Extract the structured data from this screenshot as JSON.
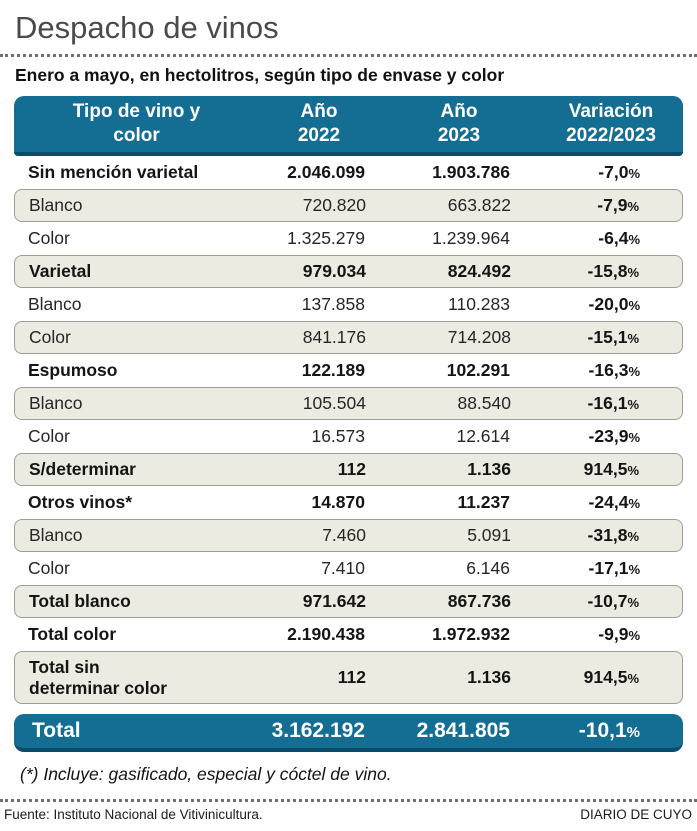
{
  "title": "Despacho de vinos",
  "subtitle": "Enero a mayo, en hectolitros, según tipo de envase y color",
  "colors": {
    "header_teal": "#146d92",
    "header_teal_dark_edge": "#0b4c6b",
    "shaded_row": "#ebebe2",
    "shaded_row_border": "#9e9e96",
    "title_gray": "#4a4a4a"
  },
  "chart_data": {
    "type": "table",
    "title": "Despacho de vinos",
    "subtitle": "Enero a mayo, en hectolitros, según tipo de envase y color",
    "unit": "hectolitros",
    "columns": [
      "Tipo de vino y color",
      "Año 2022",
      "Año 2023",
      "Variación 2022/2023"
    ],
    "header": {
      "col1": "Tipo de vino y\ncolor",
      "col2": "Año\n2022",
      "col3": "Año\n2023",
      "col4": "Variación\n2022/2023"
    },
    "rows": [
      {
        "label": "Sin mención varietal",
        "y2022": "2.046.099",
        "y2023": "1.903.786",
        "variation": "-7,0%",
        "bold": true,
        "shaded": false
      },
      {
        "label": "Blanco",
        "y2022": "720.820",
        "y2023": "663.822",
        "variation": "-7,9%",
        "bold": false,
        "shaded": true
      },
      {
        "label": "Color",
        "y2022": "1.325.279",
        "y2023": "1.239.964",
        "variation": "-6,4%",
        "bold": false,
        "shaded": false
      },
      {
        "label": "Varietal",
        "y2022": "979.034",
        "y2023": "824.492",
        "variation": "-15,8%",
        "bold": true,
        "shaded": true
      },
      {
        "label": "Blanco",
        "y2022": "137.858",
        "y2023": "110.283",
        "variation": "-20,0%",
        "bold": false,
        "shaded": false
      },
      {
        "label": "Color",
        "y2022": "841.176",
        "y2023": "714.208",
        "variation": "-15,1%",
        "bold": false,
        "shaded": true
      },
      {
        "label": "Espumoso",
        "y2022": "122.189",
        "y2023": "102.291",
        "variation": "-16,3%",
        "bold": true,
        "shaded": false
      },
      {
        "label": "Blanco",
        "y2022": "105.504",
        "y2023": "88.540",
        "variation": "-16,1%",
        "bold": false,
        "shaded": true
      },
      {
        "label": "Color",
        "y2022": "16.573",
        "y2023": "12.614",
        "variation": "-23,9%",
        "bold": false,
        "shaded": false
      },
      {
        "label": "S/determinar",
        "y2022": "112",
        "y2023": "1.136",
        "variation": "914,5%",
        "bold": true,
        "shaded": true
      },
      {
        "label": "Otros vinos*",
        "y2022": "14.870",
        "y2023": "11.237",
        "variation": "-24,4%",
        "bold": true,
        "shaded": false
      },
      {
        "label": "Blanco",
        "y2022": "7.460",
        "y2023": "5.091",
        "variation": "-31,8%",
        "bold": false,
        "shaded": true
      },
      {
        "label": "Color",
        "y2022": "7.410",
        "y2023": "6.146",
        "variation": "-17,1%",
        "bold": false,
        "shaded": false
      },
      {
        "label": "Total blanco",
        "y2022": "971.642",
        "y2023": "867.736",
        "variation": "-10,7%",
        "bold": true,
        "shaded": true
      },
      {
        "label": "Total color",
        "y2022": "2.190.438",
        "y2023": "1.972.932",
        "variation": "-9,9%",
        "bold": true,
        "shaded": false
      },
      {
        "label": "Total sin\ndeterminar color",
        "y2022": "112",
        "y2023": "1.136",
        "variation": "914,5%",
        "bold": true,
        "shaded": true,
        "tall": true
      }
    ],
    "total": {
      "label": "Total",
      "y2022": "3.162.192",
      "y2023": "2.841.805",
      "variation": "-10,1%"
    }
  },
  "footnote": "(*) Incluye: gasificado, especial y cóctel de vino.",
  "footer": {
    "source": "Fuente: Instituto Nacional de Vitivinicultura.",
    "credit": "DIARIO DE CUYO"
  }
}
